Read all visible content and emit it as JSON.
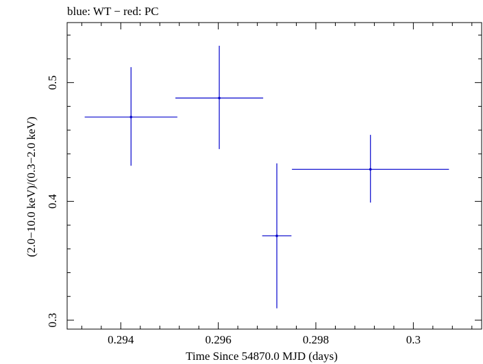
{
  "chart_data": {
    "type": "scatter",
    "title": "blue: WT − red: PC",
    "xlabel": "Time Since 54870.0 MJD (days)",
    "ylabel": "(2.0−10.0 keV)/(0.3−2.0 keV)",
    "xlim": [
      0.2929,
      0.3014
    ],
    "ylim": [
      0.2925,
      0.5505
    ],
    "xticks": [
      0.294,
      0.296,
      0.298,
      0.3
    ],
    "xtick_labels": [
      "0.294",
      "0.296",
      "0.298",
      "0.3"
    ],
    "yticks": [
      0.3,
      0.4,
      0.5
    ],
    "ytick_labels": [
      "0.3",
      "0.4",
      "0.5"
    ],
    "grid": false,
    "series": [
      {
        "color": "#0000cc",
        "points": [
          {
            "x": 0.29421,
            "y": 0.471,
            "xerr": 0.00095,
            "yerr_low": 0.041,
            "yerr_high": 0.042
          },
          {
            "x": 0.29602,
            "y": 0.487,
            "xerr": 0.0009,
            "yerr_low": 0.043,
            "yerr_high": 0.044
          },
          {
            "x": 0.2972,
            "y": 0.371,
            "xerr": 0.0003,
            "yerr_low": 0.061,
            "yerr_high": 0.061
          },
          {
            "x": 0.29912,
            "y": 0.427,
            "xerr": 0.00161,
            "yerr_low": 0.028,
            "yerr_high": 0.029
          }
        ]
      }
    ]
  }
}
